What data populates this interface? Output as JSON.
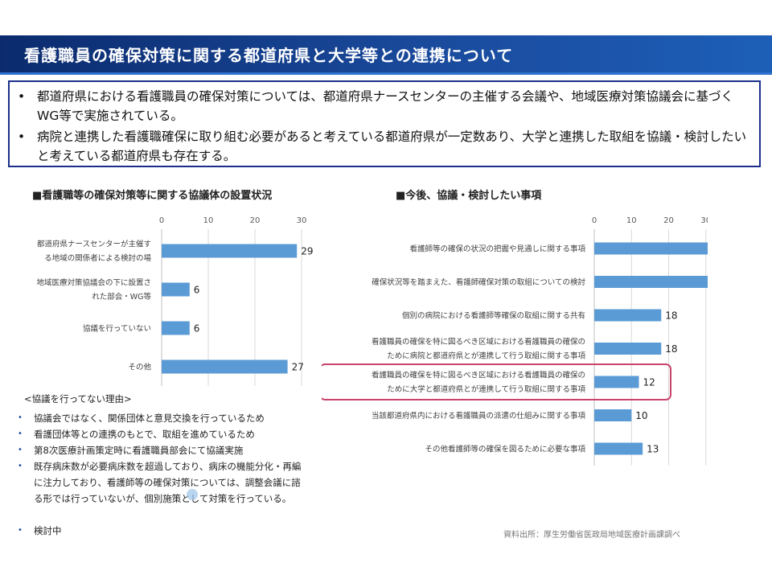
{
  "header": {
    "title": "看護職員の確保対策に関する都道府県と大学等との連携について"
  },
  "summary": {
    "bullets": [
      "都道府県における看護職員の確保対策については、都道府県ナースセンターの主催する会議や、地域医療対策協議会に基づくWG等で実施されている。",
      "病院と連携した看護職確保に取り組む必要があると考えている都道府県が一定数あり、大学と連携した取組を協議・検討したいと考えている都道府県も存在する。"
    ]
  },
  "left_chart": {
    "title": "■看護職等の確保対策等に関する協議体の設置状況"
  },
  "right_chart": {
    "title": "■今後、協議・検討したい事項"
  },
  "reasons": {
    "title": "<協議を行ってない理由>",
    "items": [
      "協議会ではなく、関係団体と意見交換を行っているため",
      "看護団体等との連携のもとで、取組を進めているため",
      "第8次医療計画策定時に看護職員部会にて協議実施",
      "既存病床数が必要病床数を超過しており、病床の機能分化・再編に注力しており、看護師等の確保対策については、調整会議に諮る形では行っていないが、個別施策として対策を行っている。",
      "検討中"
    ]
  },
  "source": "資料出所：厚生労働省医政局地域医療計画課調べ",
  "colors": {
    "bar": "#5b9bd5",
    "highlight": "#c9446b",
    "title_bg": "#0b2b6e",
    "box_border": "#1b2f8a"
  },
  "chart_data": [
    {
      "type": "bar",
      "orientation": "horizontal",
      "title": "■看護職等の確保対策等に関する協議体の設置状況",
      "categories": [
        [
          "都道府県ナースセンターが主催す",
          "る地域の関係者による検討の場"
        ],
        [
          "地域医療対策協議会の下に設置さ",
          "れた部会・WG等"
        ],
        [
          "協議を行っていない"
        ],
        [
          "その他"
        ]
      ],
      "values": [
        29,
        6,
        6,
        27
      ],
      "xlim": [
        0,
        30
      ],
      "ticks": [
        0,
        10,
        20,
        30
      ],
      "axis_position": "top"
    },
    {
      "type": "bar",
      "orientation": "horizontal",
      "title": "■今後、協議・検討したい事項",
      "categories": [
        [
          "看護師等の確保の状況の把握や見通しに関する事項"
        ],
        [
          "確保状況等を踏まえた、看護師確保対策の取組についての検討"
        ],
        [
          "個別の病院における看護師等確保の取組に関する共有"
        ],
        [
          "看護職員の確保を特に図るべき区域における看護職員の確保の",
          "ために病院と都道府県とが連携して行う取組に関する事項"
        ],
        [
          "看護職員の確保を特に図るべき区域における看護職員の確保の",
          "ために大学と都道府県とが連携して行う取組に関する事項"
        ],
        [
          "当該都道府県内における看護職員の派遣の仕組みに関する事項"
        ],
        [
          "その他看護師等の確保を図るために必要な事項"
        ]
      ],
      "values": [
        41,
        40,
        18,
        18,
        12,
        10,
        13
      ],
      "highlighted_index": 4,
      "xlim": [
        0,
        40
      ],
      "ticks": [
        0,
        10,
        20,
        30,
        40
      ],
      "axis_position": "top"
    }
  ]
}
